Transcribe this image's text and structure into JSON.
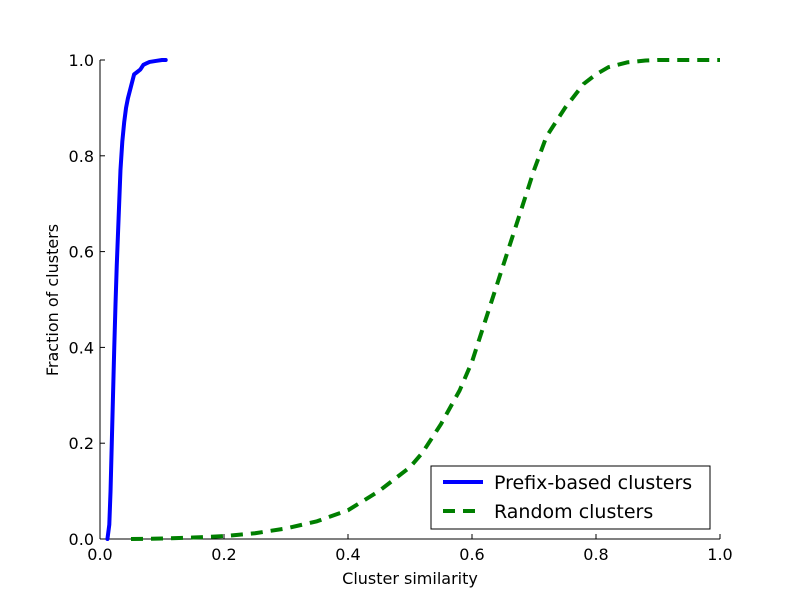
{
  "chart_data": {
    "type": "line",
    "title": "",
    "xlabel": "Cluster similarity",
    "ylabel": "Fraction of clusters",
    "xlim": [
      0.0,
      1.0
    ],
    "ylim": [
      0.0,
      1.0
    ],
    "x_ticks": [
      "0.0",
      "0.2",
      "0.4",
      "0.6",
      "0.8",
      "1.0"
    ],
    "y_ticks": [
      "0.0",
      "0.2",
      "0.4",
      "0.6",
      "0.8",
      "1.0"
    ],
    "grid": false,
    "legend_position": "lower-right",
    "series": [
      {
        "name": "Prefix-based clusters",
        "color": "#0000ff",
        "style": "solid",
        "x": [
          0.012,
          0.015,
          0.017,
          0.019,
          0.021,
          0.023,
          0.025,
          0.027,
          0.03,
          0.033,
          0.036,
          0.039,
          0.042,
          0.045,
          0.05,
          0.055,
          0.06,
          0.065,
          0.07,
          0.075,
          0.08,
          0.09,
          0.1,
          0.106
        ],
        "y": [
          0.0,
          0.03,
          0.1,
          0.2,
          0.3,
          0.4,
          0.49,
          0.57,
          0.67,
          0.77,
          0.83,
          0.87,
          0.9,
          0.92,
          0.945,
          0.97,
          0.975,
          0.98,
          0.99,
          0.993,
          0.996,
          0.998,
          1.0,
          1.0
        ]
      },
      {
        "name": "Random clusters",
        "color": "#007f00",
        "style": "dashed",
        "x": [
          0.05,
          0.1,
          0.15,
          0.2,
          0.25,
          0.3,
          0.35,
          0.4,
          0.45,
          0.5,
          0.52,
          0.55,
          0.58,
          0.6,
          0.62,
          0.65,
          0.68,
          0.7,
          0.72,
          0.75,
          0.78,
          0.8,
          0.82,
          0.85,
          0.88,
          0.9,
          1.0
        ],
        "y": [
          0.0,
          0.001,
          0.003,
          0.006,
          0.012,
          0.022,
          0.037,
          0.06,
          0.1,
          0.15,
          0.18,
          0.24,
          0.31,
          0.37,
          0.45,
          0.57,
          0.69,
          0.77,
          0.84,
          0.9,
          0.95,
          0.97,
          0.985,
          0.995,
          0.999,
          1.0,
          1.0
        ]
      }
    ]
  }
}
